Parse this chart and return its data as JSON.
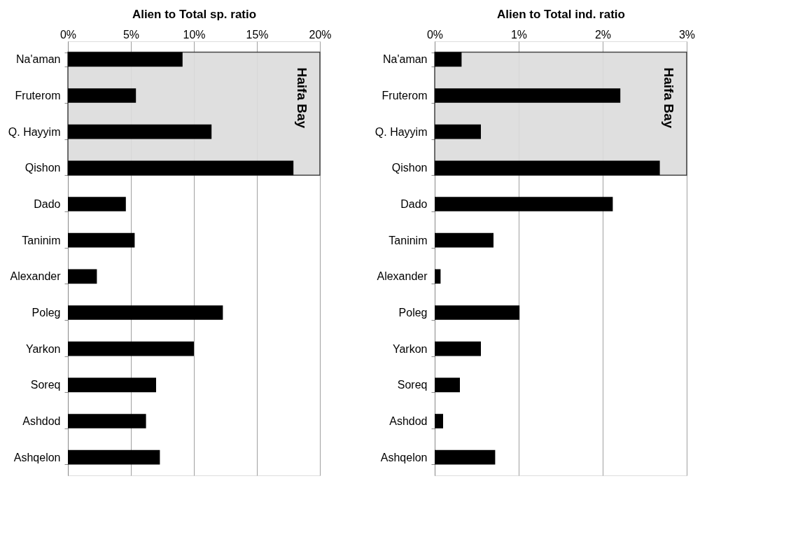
{
  "chart_data": [
    {
      "type": "bar",
      "orientation": "horizontal",
      "xlabel": "Alien to Total sp. ratio",
      "categories": [
        "Na'aman",
        "Fruterom",
        "Q. Hayyim",
        "Qishon",
        "Dado",
        "Taninim",
        "Alexander",
        "Poleg",
        "Yarkon",
        "Soreq",
        "Ashdod",
        "Ashqelon"
      ],
      "values": [
        9.1,
        5.4,
        11.4,
        17.9,
        4.6,
        5.3,
        2.3,
        12.3,
        10.0,
        7.0,
        6.2,
        7.3
      ],
      "color": "#000000",
      "xlim": [
        0,
        20
      ],
      "xticks": [
        {
          "value": 0,
          "label": "0%"
        },
        {
          "value": 5,
          "label": "5%"
        },
        {
          "value": 10,
          "label": "10%"
        },
        {
          "value": 15,
          "label": "15%"
        },
        {
          "value": 20,
          "label": "20%"
        }
      ],
      "grid": "x",
      "bands": [
        {
          "axis": "y",
          "from": "Na'aman",
          "to": "Qishon",
          "label": "Haifa Bay",
          "color": "#dcdcdc"
        }
      ]
    },
    {
      "type": "bar",
      "orientation": "horizontal",
      "xlabel": "Alien to Total ind. ratio",
      "categories": [
        "Na'aman",
        "Fruterom",
        "Q. Hayyim",
        "Qishon",
        "Dado",
        "Taninim",
        "Alexander",
        "Poleg",
        "Yarkon",
        "Soreq",
        "Ashdod",
        "Ashqelon"
      ],
      "values": [
        0.32,
        2.21,
        0.55,
        2.68,
        2.12,
        0.7,
        0.07,
        1.01,
        0.55,
        0.3,
        0.1,
        0.72
      ],
      "color": "#000000",
      "xlim": [
        0,
        3
      ],
      "xticks": [
        {
          "value": 0,
          "label": "0%"
        },
        {
          "value": 1,
          "label": "1%"
        },
        {
          "value": 2,
          "label": "2%"
        },
        {
          "value": 3,
          "label": "3%"
        }
      ],
      "grid": "x",
      "bands": [
        {
          "axis": "y",
          "from": "Na'aman",
          "to": "Qishon",
          "label": "Haifa Bay",
          "color": "#dcdcdc"
        }
      ]
    }
  ]
}
